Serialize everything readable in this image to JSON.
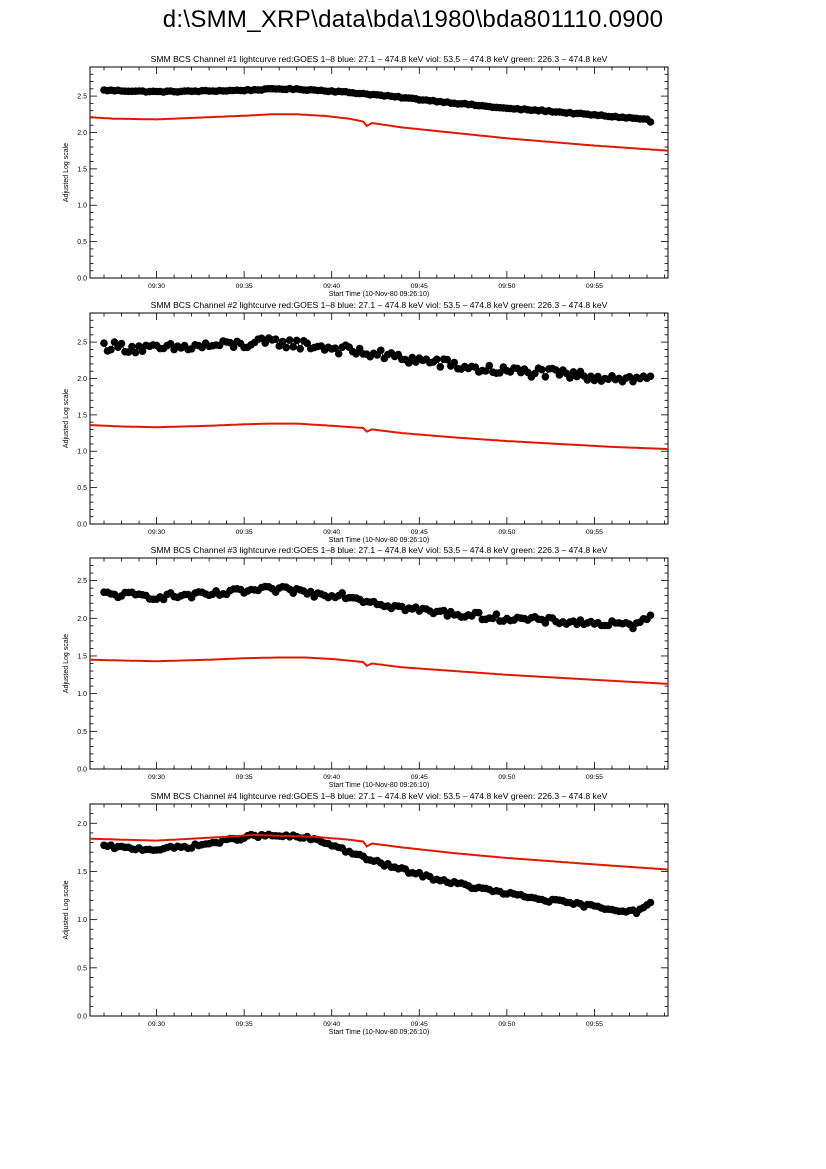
{
  "page_title": "d:\\SMM_XRP\\data\\bda\\1980\\bda801110.0900",
  "colors": {
    "goes_line": "#dd1a00",
    "bcs_points": "#000000",
    "axes": "#000000"
  },
  "chart_data": [
    {
      "type": "scatter",
      "title": "SMM BCS Channel #1 lightcurve  red:GOES 1–8  blue: 27.1 – 474.8 keV  viol: 53.5 – 474.8 keV  green: 226.3 – 474.8 keV",
      "xlabel": "Start Time (10-Nov-80 09:26:10)",
      "ylabel": "Adjusted Log scale",
      "xlim": [
        26.2,
        59.2
      ],
      "ylim": [
        0,
        2.9
      ],
      "x_tick_labels": [
        "09:30",
        "09:35",
        "09:40",
        "09:45",
        "09:50",
        "09:55"
      ],
      "y_tick_labels": [
        "0.0",
        "0.5",
        "1.0",
        "1.5",
        "2.0",
        "2.5"
      ],
      "series": [
        {
          "style": "points",
          "color": "#000000",
          "noise": 0.008,
          "profile": [
            [
              27.0,
              2.58
            ],
            [
              30.0,
              2.56
            ],
            [
              33.0,
              2.57
            ],
            [
              35.0,
              2.58
            ],
            [
              37.0,
              2.6
            ],
            [
              38.5,
              2.59
            ],
            [
              40.0,
              2.57
            ],
            [
              42.0,
              2.53
            ],
            [
              44.0,
              2.48
            ],
            [
              46.0,
              2.43
            ],
            [
              48.0,
              2.38
            ],
            [
              50.0,
              2.33
            ],
            [
              52.0,
              2.3
            ],
            [
              54.0,
              2.26
            ],
            [
              56.0,
              2.22
            ],
            [
              58.0,
              2.18
            ],
            [
              58.3,
              2.12
            ]
          ]
        },
        {
          "style": "line",
          "color": "#dd1a00",
          "profile": [
            [
              26.2,
              2.21
            ],
            [
              27.5,
              2.19
            ],
            [
              30.0,
              2.18
            ],
            [
              31.0,
              2.19
            ],
            [
              33.0,
              2.21
            ],
            [
              35.0,
              2.23
            ],
            [
              36.5,
              2.25
            ],
            [
              38.0,
              2.25
            ],
            [
              39.5,
              2.23
            ],
            [
              41.0,
              2.19
            ],
            [
              41.8,
              2.15
            ],
            [
              42.0,
              2.09
            ],
            [
              42.3,
              2.13
            ],
            [
              44.0,
              2.07
            ],
            [
              46.0,
              2.02
            ],
            [
              48.0,
              1.97
            ],
            [
              50.0,
              1.92
            ],
            [
              52.0,
              1.88
            ],
            [
              55.0,
              1.82
            ],
            [
              59.2,
              1.75
            ]
          ]
        }
      ]
    },
    {
      "type": "scatter",
      "title": "SMM BCS Channel #2 lightcurve  red:GOES 1–8  blue: 27.1 – 474.8 keV  viol: 53.5 – 474.8 keV  green: 226.3 – 474.8 keV",
      "xlabel": "Start Time (10-Nov-80 09:26:10)",
      "ylabel": "Adjusted Log scale",
      "xlim": [
        26.2,
        59.2
      ],
      "ylim": [
        0,
        2.9
      ],
      "x_tick_labels": [
        "09:30",
        "09:35",
        "09:40",
        "09:45",
        "09:50",
        "09:55"
      ],
      "y_tick_labels": [
        "0.0",
        "0.5",
        "1.0",
        "1.5",
        "2.0",
        "2.5"
      ],
      "series": [
        {
          "style": "points",
          "color": "#000000",
          "noise": 0.07,
          "profile": [
            [
              27.0,
              2.45
            ],
            [
              30.0,
              2.4
            ],
            [
              33.0,
              2.45
            ],
            [
              35.0,
              2.47
            ],
            [
              37.0,
              2.5
            ],
            [
              39.0,
              2.45
            ],
            [
              40.0,
              2.42
            ],
            [
              42.0,
              2.35
            ],
            [
              44.0,
              2.28
            ],
            [
              46.0,
              2.22
            ],
            [
              48.0,
              2.14
            ],
            [
              50.0,
              2.1
            ],
            [
              52.0,
              2.08
            ],
            [
              54.0,
              2.04
            ],
            [
              56.0,
              2.02
            ],
            [
              57.5,
              1.98
            ],
            [
              58.3,
              2.05
            ]
          ]
        },
        {
          "style": "line",
          "color": "#dd1a00",
          "profile": [
            [
              26.2,
              1.36
            ],
            [
              28.0,
              1.34
            ],
            [
              30.0,
              1.33
            ],
            [
              33.0,
              1.35
            ],
            [
              35.0,
              1.37
            ],
            [
              36.5,
              1.38
            ],
            [
              38.0,
              1.38
            ],
            [
              40.0,
              1.35
            ],
            [
              41.8,
              1.32
            ],
            [
              42.0,
              1.27
            ],
            [
              42.3,
              1.3
            ],
            [
              44.0,
              1.25
            ],
            [
              47.0,
              1.19
            ],
            [
              50.0,
              1.14
            ],
            [
              53.0,
              1.1
            ],
            [
              56.0,
              1.06
            ],
            [
              59.2,
              1.03
            ]
          ]
        }
      ]
    },
    {
      "type": "scatter",
      "title": "SMM BCS Channel #3 lightcurve  red:GOES 1–8  blue: 27.1 – 474.8 keV  viol: 53.5 – 474.8 keV  green: 226.3 – 474.8 keV",
      "xlabel": "Start Time (10-Nov-80 09:26:10)",
      "ylabel": "Adjusted Log scale",
      "xlim": [
        26.2,
        59.2
      ],
      "ylim": [
        0,
        2.8
      ],
      "x_tick_labels": [
        "09:30",
        "09:35",
        "09:40",
        "09:45",
        "09:50",
        "09:55"
      ],
      "y_tick_labels": [
        "0.0",
        "0.5",
        "1.0",
        "1.5",
        "2.0",
        "2.5"
      ],
      "series": [
        {
          "style": "points",
          "color": "#000000",
          "noise": 0.045,
          "profile": [
            [
              27.0,
              2.32
            ],
            [
              30.0,
              2.29
            ],
            [
              33.0,
              2.31
            ],
            [
              35.0,
              2.36
            ],
            [
              36.5,
              2.38
            ],
            [
              38.0,
              2.37
            ],
            [
              39.0,
              2.32
            ],
            [
              40.5,
              2.32
            ],
            [
              42.0,
              2.24
            ],
            [
              44.0,
              2.14
            ],
            [
              46.0,
              2.08
            ],
            [
              48.0,
              2.04
            ],
            [
              50.0,
              2.0
            ],
            [
              52.0,
              1.97
            ],
            [
              54.0,
              1.95
            ],
            [
              56.0,
              1.92
            ],
            [
              57.5,
              1.9
            ],
            [
              58.3,
              2.1
            ]
          ]
        },
        {
          "style": "line",
          "color": "#dd1a00",
          "profile": [
            [
              26.2,
              1.45
            ],
            [
              28.0,
              1.44
            ],
            [
              30.0,
              1.43
            ],
            [
              33.0,
              1.45
            ],
            [
              35.0,
              1.47
            ],
            [
              37.0,
              1.48
            ],
            [
              38.5,
              1.48
            ],
            [
              40.0,
              1.46
            ],
            [
              41.8,
              1.42
            ],
            [
              42.0,
              1.37
            ],
            [
              42.3,
              1.4
            ],
            [
              44.0,
              1.35
            ],
            [
              47.0,
              1.3
            ],
            [
              50.0,
              1.25
            ],
            [
              53.0,
              1.21
            ],
            [
              56.0,
              1.17
            ],
            [
              59.2,
              1.13
            ]
          ]
        }
      ]
    },
    {
      "type": "scatter",
      "title": "SMM BCS Channel #4 lightcurve  red:GOES 1–8  blue: 27.1 – 474.8 keV  viol: 53.5 – 474.8 keV  green: 226.3 – 474.8 keV",
      "xlabel": "Start Time (10-Nov-80 09:26:10)",
      "ylabel": "Adjusted Log scale",
      "xlim": [
        26.2,
        59.2
      ],
      "ylim": [
        0,
        2.2
      ],
      "x_tick_labels": [
        "09:30",
        "09:35",
        "09:40",
        "09:45",
        "09:50",
        "09:55"
      ],
      "y_tick_labels": [
        "0.0",
        "0.5",
        "1.0",
        "1.5",
        "2.0"
      ],
      "series": [
        {
          "style": "points",
          "color": "#000000",
          "noise": 0.018,
          "profile": [
            [
              27.0,
              1.76
            ],
            [
              28.5,
              1.74
            ],
            [
              30.0,
              1.73
            ],
            [
              32.0,
              1.76
            ],
            [
              34.0,
              1.82
            ],
            [
              35.5,
              1.87
            ],
            [
              37.0,
              1.87
            ],
            [
              38.5,
              1.85
            ],
            [
              40.0,
              1.78
            ],
            [
              41.0,
              1.7
            ],
            [
              42.5,
              1.6
            ],
            [
              44.0,
              1.52
            ],
            [
              46.0,
              1.42
            ],
            [
              48.0,
              1.34
            ],
            [
              50.0,
              1.27
            ],
            [
              52.0,
              1.21
            ],
            [
              54.0,
              1.16
            ],
            [
              56.0,
              1.11
            ],
            [
              57.5,
              1.08
            ],
            [
              58.3,
              1.18
            ]
          ]
        },
        {
          "style": "line",
          "color": "#dd1a00",
          "profile": [
            [
              26.2,
              1.84
            ],
            [
              28.0,
              1.83
            ],
            [
              30.0,
              1.82
            ],
            [
              32.0,
              1.84
            ],
            [
              34.0,
              1.86
            ],
            [
              35.5,
              1.88
            ],
            [
              37.0,
              1.87
            ],
            [
              39.0,
              1.86
            ],
            [
              41.0,
              1.83
            ],
            [
              41.8,
              1.81
            ],
            [
              42.0,
              1.76
            ],
            [
              42.3,
              1.79
            ],
            [
              44.0,
              1.75
            ],
            [
              47.0,
              1.69
            ],
            [
              50.0,
              1.64
            ],
            [
              53.0,
              1.6
            ],
            [
              56.0,
              1.56
            ],
            [
              59.2,
              1.52
            ]
          ]
        }
      ]
    }
  ]
}
